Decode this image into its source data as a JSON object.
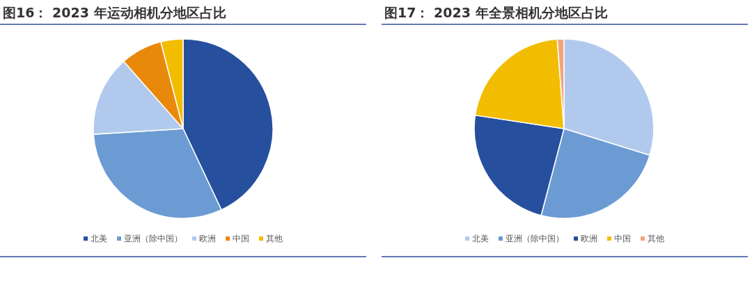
{
  "chart_data": [
    {
      "type": "pie",
      "title": "图16： 2023 年运动相机分地区占比",
      "categories": [
        "北美",
        "亚洲（除中国）",
        "欧洲",
        "中国",
        "其他"
      ],
      "values": [
        43,
        31,
        14.5,
        7.5,
        4
      ],
      "colors": [
        "#264f9e",
        "#6c9bd3",
        "#b1c9ed",
        "#e8890c",
        "#f2bd00"
      ],
      "legend": "bottom"
    },
    {
      "type": "pie",
      "title": "图17： 2023 年全景相机分地区占比",
      "categories": [
        "北美",
        "亚洲（除中国）",
        "欧洲",
        "中国",
        "其他"
      ],
      "values": [
        29.8,
        24.3,
        23.3,
        21.4,
        1.2
      ],
      "colors": [
        "#b1c9ed",
        "#6c9bd3",
        "#264f9e",
        "#f2bd00",
        "#f4a57c"
      ],
      "legend": "bottom"
    }
  ]
}
